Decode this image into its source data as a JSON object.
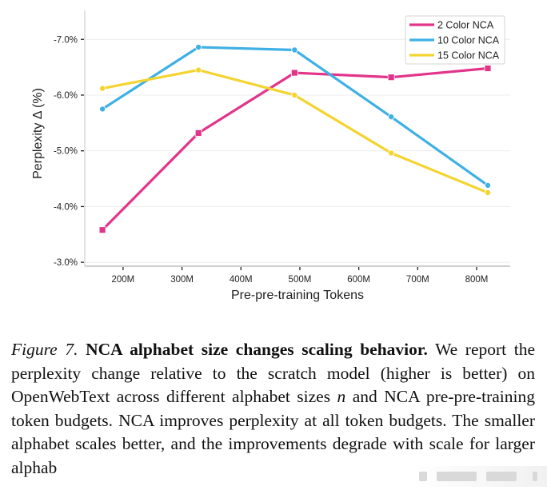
{
  "chart_data": {
    "type": "line",
    "title": "",
    "xlabel": "Pre-pre-training Tokens",
    "ylabel": "Perplexity Δ (%)",
    "x_unit": "M tokens",
    "xlim": [
      135,
      857
    ],
    "ylim": [
      -2.93,
      -7.52
    ],
    "y_inverted": true,
    "grid": true,
    "legend_position": "top-right",
    "x_ticks": [
      {
        "value": 200,
        "label": "200M"
      },
      {
        "value": 300,
        "label": "300M"
      },
      {
        "value": 400,
        "label": "400M"
      },
      {
        "value": 500,
        "label": "500M"
      },
      {
        "value": 600,
        "label": "600M"
      },
      {
        "value": 700,
        "label": "700M"
      },
      {
        "value": 800,
        "label": "800M"
      }
    ],
    "y_ticks": [
      {
        "value": -7.0,
        "label": "-7.0%"
      },
      {
        "value": -6.0,
        "label": "-6.0%"
      },
      {
        "value": -5.0,
        "label": "-5.0%"
      },
      {
        "value": -4.0,
        "label": "-4.0%"
      },
      {
        "value": -3.0,
        "label": "-3.0%"
      }
    ],
    "x": [
      165,
      328,
      491,
      655,
      819
    ],
    "series": [
      {
        "name": "2 Color NCA",
        "color": "#e2348a",
        "marker": "square",
        "values": [
          -3.58,
          -5.32,
          -6.4,
          -6.32,
          -6.48
        ]
      },
      {
        "name": "10 Color NCA",
        "color": "#3fb0e4",
        "marker": "circle",
        "values": [
          -5.75,
          -6.86,
          -6.81,
          -5.61,
          -4.38
        ]
      },
      {
        "name": "15 Color NCA",
        "color": "#f4d430",
        "marker": "circle",
        "values": [
          -6.12,
          -6.45,
          -6.0,
          -4.96,
          -4.25
        ]
      }
    ]
  },
  "caption": {
    "label": "Figure 7.",
    "title": "NCA alphabet size changes scaling behavior.",
    "body_part1": "We report the perplexity change relative to the scratch model (higher is better) on OpenWebText across different alphabet sizes",
    "math_var": "n",
    "body_part2": "and NCA pre-pre-training token budgets. NCA improves perplexity at all token budgets. The smaller alphabet scales better, and the improvements degrade with scale for larger alphab"
  }
}
